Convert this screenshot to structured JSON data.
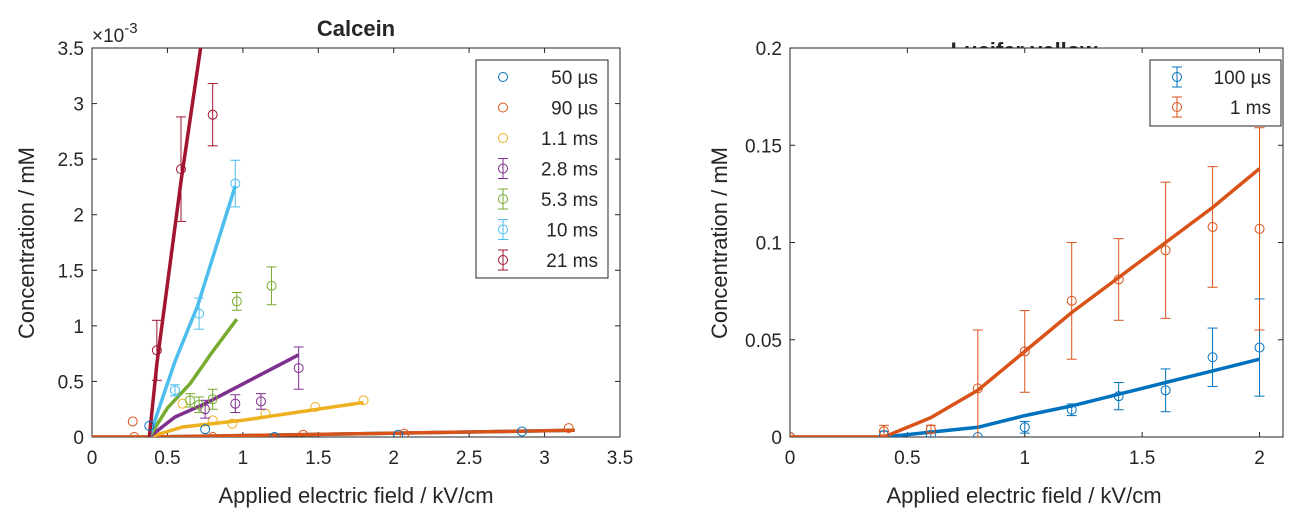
{
  "chart_data": [
    {
      "type": "scatter",
      "title": "Calcein",
      "xlabel": "Applied electric field / kV/cm",
      "ylabel": "Concentration / mM",
      "xlim": [
        0,
        3.5
      ],
      "ylim": [
        0,
        3.5
      ],
      "y_multiplier": "×10",
      "y_exponent": "-3",
      "x_ticks": [
        "0",
        "0.5",
        "1",
        "1.5",
        "2",
        "2.5",
        "3",
        "3.5"
      ],
      "y_ticks": [
        "0",
        "0.5",
        "1",
        "1.5",
        "2",
        "2.5",
        "3",
        "3.5"
      ],
      "grid": false,
      "legend_position": "top-right",
      "series": [
        {
          "name": "50 µs",
          "color": "#0072BD",
          "error_bars": false,
          "points": [
            [
              0.38,
              0.1
            ],
            [
              0.75,
              0.07
            ],
            [
              1.21,
              0.0
            ],
            [
              2.03,
              0.02
            ],
            [
              2.85,
              0.05
            ]
          ],
          "fit": [
            [
              0,
              0
            ],
            [
              0.38,
              0.0
            ],
            [
              3.2,
              0.06
            ]
          ]
        },
        {
          "name": "90 µs",
          "color": "#D95319",
          "error_bars": false,
          "points": [
            [
              0.27,
              0.14
            ],
            [
              0.28,
              0.0
            ],
            [
              0.8,
              0.0
            ],
            [
              1.4,
              0.02
            ],
            [
              2.07,
              0.03
            ],
            [
              3.16,
              0.08
            ]
          ],
          "fit": [
            [
              0,
              0
            ],
            [
              0.38,
              0.0
            ],
            [
              3.2,
              0.06
            ]
          ]
        },
        {
          "name": "1.1 ms",
          "color": "#EDB120",
          "error_bars": false,
          "points": [
            [
              0.6,
              0.3
            ],
            [
              0.8,
              0.15
            ],
            [
              0.93,
              0.12
            ],
            [
              1.15,
              0.21
            ],
            [
              1.48,
              0.27
            ],
            [
              1.8,
              0.33
            ]
          ],
          "fit": [
            [
              0.38,
              0.0
            ],
            [
              0.6,
              0.09
            ],
            [
              1.0,
              0.15
            ],
            [
              1.8,
              0.31
            ]
          ]
        },
        {
          "name": "2.8 ms",
          "color": "#7E2F8E",
          "error_bars": true,
          "points": [
            [
              0.75,
              0.25,
              0.08
            ],
            [
              0.95,
              0.3,
              0.08
            ],
            [
              1.12,
              0.32,
              0.07
            ],
            [
              1.37,
              0.62,
              0.19
            ]
          ],
          "fit": [
            [
              0.38,
              0.0
            ],
            [
              0.55,
              0.18
            ],
            [
              0.75,
              0.3
            ],
            [
              1.37,
              0.74
            ]
          ]
        },
        {
          "name": "5.3 ms",
          "color": "#77AC30",
          "error_bars": true,
          "points": [
            [
              0.65,
              0.33,
              0.06
            ],
            [
              0.71,
              0.29,
              0.07
            ],
            [
              0.8,
              0.34,
              0.09
            ],
            [
              0.96,
              1.22,
              0.08
            ],
            [
              1.19,
              1.36,
              0.17
            ]
          ],
          "fit": [
            [
              0.38,
              0.0
            ],
            [
              0.5,
              0.26
            ],
            [
              0.65,
              0.48
            ],
            [
              0.8,
              0.77
            ],
            [
              0.96,
              1.06
            ]
          ]
        },
        {
          "name": "10 ms",
          "color": "#4DBEEE",
          "error_bars": true,
          "points": [
            [
              0.55,
              0.42,
              0.05
            ],
            [
              0.71,
              1.11,
              0.14
            ],
            [
              0.95,
              2.28,
              0.21
            ]
          ],
          "fit": [
            [
              0.38,
              0.0
            ],
            [
              0.55,
              0.68
            ],
            [
              0.7,
              1.18
            ],
            [
              0.95,
              2.26
            ]
          ]
        },
        {
          "name": "21 ms",
          "color": "#A2142F",
          "error_bars": true,
          "points": [
            [
              0.43,
              0.78,
              0.27
            ],
            [
              0.59,
              2.41,
              0.47
            ],
            [
              0.8,
              2.9,
              0.28
            ]
          ],
          "fit": [
            [
              0.38,
              0.0
            ],
            [
              0.43,
              0.66
            ],
            [
              0.59,
              2.3
            ],
            [
              0.72,
              3.5
            ]
          ]
        }
      ]
    },
    {
      "type": "scatter",
      "title": "Lucifer yellow",
      "xlabel": "Applied electric field / kV/cm",
      "ylabel": "Concentration / mM",
      "xlim": [
        0,
        2.1
      ],
      "ylim": [
        0,
        0.2
      ],
      "x_ticks": [
        "0",
        "0.5",
        "1",
        "1.5",
        "2"
      ],
      "y_ticks": [
        "0",
        "0.05",
        "0.1",
        "0.15",
        "0.2"
      ],
      "grid": false,
      "legend_position": "top-right",
      "series": [
        {
          "name": "100 µs",
          "color": "#0072BD",
          "error_bars": true,
          "points": [
            [
              0,
              0,
              0
            ],
            [
              0.4,
              0.001,
              0.002
            ],
            [
              0.6,
              0.001,
              0.002
            ],
            [
              0.8,
              0.0,
              0
            ],
            [
              1.0,
              0.005,
              0.003
            ],
            [
              1.2,
              0.014,
              0.003
            ],
            [
              1.4,
              0.021,
              0.007
            ],
            [
              1.6,
              0.024,
              0.011
            ],
            [
              1.8,
              0.041,
              0.015
            ],
            [
              2.0,
              0.046,
              0.025
            ]
          ],
          "fit": [
            [
              0,
              0
            ],
            [
              0.4,
              0
            ],
            [
              0.8,
              0.005
            ],
            [
              1.0,
              0.011
            ],
            [
              1.2,
              0.016
            ],
            [
              1.4,
              0.022
            ],
            [
              1.6,
              0.028
            ],
            [
              1.8,
              0.034
            ],
            [
              2.0,
              0.04
            ]
          ]
        },
        {
          "name": "1 ms",
          "color": "#D95319",
          "error_bars": true,
          "points": [
            [
              0,
              0,
              0
            ],
            [
              0.4,
              0.003,
              0.003
            ],
            [
              0.6,
              0.004,
              0.002
            ],
            [
              0.8,
              0.025,
              0.03
            ],
            [
              1.0,
              0.044,
              0.021
            ],
            [
              1.2,
              0.07,
              0.03
            ],
            [
              1.4,
              0.081,
              0.021
            ],
            [
              1.6,
              0.096,
              0.035
            ],
            [
              1.8,
              0.108,
              0.031
            ],
            [
              2.0,
              0.107,
              0.052
            ]
          ],
          "fit": [
            [
              0,
              0
            ],
            [
              0.4,
              0
            ],
            [
              0.6,
              0.01
            ],
            [
              0.8,
              0.024
            ],
            [
              1.0,
              0.044
            ],
            [
              1.2,
              0.064
            ],
            [
              1.4,
              0.082
            ],
            [
              1.6,
              0.1
            ],
            [
              1.8,
              0.118
            ],
            [
              2.0,
              0.138
            ]
          ]
        }
      ]
    }
  ]
}
